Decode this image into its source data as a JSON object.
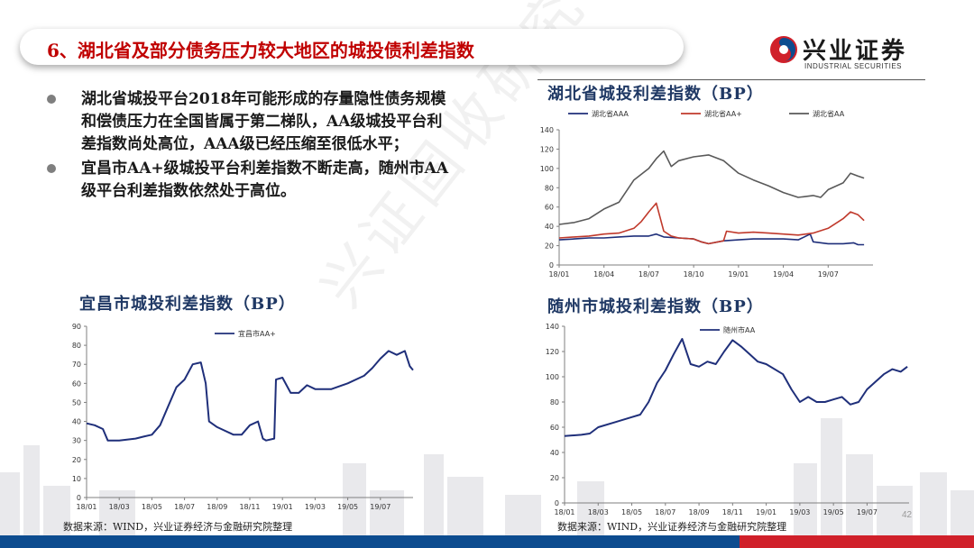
{
  "header": {
    "title": "6、湖北省及部分债务压力较大地区的城投债利差指数",
    "logo_cn": "兴业证券",
    "logo_en": "INDUSTRIAL SECURITIES"
  },
  "watermark": "兴证固收研究",
  "bullets": [
    "湖北省城投平台2018年可能形成的存量隐性债务规模和偿债压力在全国皆属于第二梯队，AA级城投平台利差指数尚处高位，AAA级已经压缩至很低水平；",
    "宜昌市AA+级城投平台利差指数不断走高，随州市AA级平台利差指数依然处于高位。"
  ],
  "sources": {
    "left": "数据来源：WIND，兴业证券经济与金融研究院整理",
    "right": "数据来源：WIND，兴业证券经济与金融研究院整理"
  },
  "page_number": "42",
  "colors": {
    "title_red": "#c00000",
    "chart_title_blue": "#1f3864",
    "navy_series": "#1f2f7a",
    "red_series": "#c0392b",
    "gray_series": "#595959",
    "footer_blue": "#0d4c8f",
    "footer_red": "#d0202a"
  },
  "chart_data": [
    {
      "id": "hubei",
      "type": "line",
      "title": "湖北省城投利差指数（BP）",
      "ylim": [
        0,
        140
      ],
      "yticks": [
        0,
        20,
        40,
        60,
        80,
        100,
        120,
        140
      ],
      "xlim": [
        0,
        21
      ],
      "xticks": [
        {
          "x": 0,
          "label": "18/01"
        },
        {
          "x": 3,
          "label": "18/04"
        },
        {
          "x": 6,
          "label": "18/07"
        },
        {
          "x": 9,
          "label": "18/10"
        },
        {
          "x": 12,
          "label": "19/01"
        },
        {
          "x": 15,
          "label": "19/04"
        },
        {
          "x": 18,
          "label": "19/07"
        }
      ],
      "legend": "top",
      "series": [
        {
          "name": "湖北省AAA",
          "color": "#1f2f7a",
          "points": [
            [
              0,
              26
            ],
            [
              1,
              27
            ],
            [
              2,
              28
            ],
            [
              3,
              28
            ],
            [
              4,
              29
            ],
            [
              5,
              30
            ],
            [
              6,
              30
            ],
            [
              6.5,
              32
            ],
            [
              7,
              29
            ],
            [
              8,
              28
            ],
            [
              9,
              27
            ],
            [
              9.5,
              24
            ],
            [
              10,
              22
            ],
            [
              11,
              25
            ],
            [
              12,
              26
            ],
            [
              13,
              27
            ],
            [
              14,
              27
            ],
            [
              15,
              27
            ],
            [
              16,
              26
            ],
            [
              16.8,
              32
            ],
            [
              17,
              24
            ],
            [
              18,
              22
            ],
            [
              19,
              22
            ],
            [
              19.7,
              23
            ],
            [
              20,
              21
            ],
            [
              20.4,
              21
            ]
          ]
        },
        {
          "name": "湖北省AA+",
          "color": "#c0392b",
          "points": [
            [
              0,
              28
            ],
            [
              1,
              29
            ],
            [
              2,
              30
            ],
            [
              3,
              32
            ],
            [
              4,
              33
            ],
            [
              5,
              38
            ],
            [
              5.5,
              45
            ],
            [
              6,
              55
            ],
            [
              6.5,
              64
            ],
            [
              7,
              35
            ],
            [
              7.5,
              30
            ],
            [
              8,
              28
            ],
            [
              9,
              27
            ],
            [
              9.5,
              24
            ],
            [
              10,
              22
            ],
            [
              11,
              25
            ],
            [
              11.2,
              35
            ],
            [
              12,
              33
            ],
            [
              13,
              34
            ],
            [
              14,
              33
            ],
            [
              15,
              32
            ],
            [
              16,
              31
            ],
            [
              17,
              33
            ],
            [
              18,
              38
            ],
            [
              19,
              48
            ],
            [
              19.5,
              55
            ],
            [
              20,
              52
            ],
            [
              20.4,
              46
            ]
          ]
        },
        {
          "name": "湖北省AA",
          "color": "#595959",
          "points": [
            [
              0,
              42
            ],
            [
              1,
              44
            ],
            [
              2,
              48
            ],
            [
              3,
              58
            ],
            [
              4,
              65
            ],
            [
              5,
              88
            ],
            [
              6,
              100
            ],
            [
              6.5,
              110
            ],
            [
              7,
              118
            ],
            [
              7.5,
              102
            ],
            [
              8,
              108
            ],
            [
              9,
              112
            ],
            [
              10,
              114
            ],
            [
              11,
              108
            ],
            [
              12,
              95
            ],
            [
              13,
              88
            ],
            [
              14,
              82
            ],
            [
              15,
              75
            ],
            [
              16,
              70
            ],
            [
              17,
              72
            ],
            [
              17.5,
              70
            ],
            [
              18,
              78
            ],
            [
              19,
              85
            ],
            [
              19.5,
              95
            ],
            [
              20,
              92
            ],
            [
              20.4,
              90
            ]
          ]
        }
      ]
    },
    {
      "id": "yichang",
      "type": "line",
      "title": "宜昌市城投利差指数（BP）",
      "ylim": [
        0,
        90
      ],
      "yticks": [
        0,
        10,
        20,
        30,
        40,
        50,
        60,
        70,
        80,
        90
      ],
      "xlim": [
        0,
        20
      ],
      "xticks": [
        {
          "x": 0,
          "label": "18/01"
        },
        {
          "x": 2,
          "label": "18/03"
        },
        {
          "x": 4,
          "label": "18/05"
        },
        {
          "x": 6,
          "label": "18/07"
        },
        {
          "x": 8,
          "label": "18/09"
        },
        {
          "x": 10,
          "label": "18/11"
        },
        {
          "x": 12,
          "label": "19/01"
        },
        {
          "x": 14,
          "label": "19/03"
        },
        {
          "x": 16,
          "label": "19/05"
        },
        {
          "x": 18,
          "label": "19/07"
        }
      ],
      "legend": "top-right",
      "series": [
        {
          "name": "宜昌市AA+",
          "color": "#1f2f7a",
          "points": [
            [
              0,
              39
            ],
            [
              0.5,
              38
            ],
            [
              1,
              36
            ],
            [
              1.3,
              30
            ],
            [
              2,
              30
            ],
            [
              3,
              31
            ],
            [
              3.5,
              32
            ],
            [
              4,
              33
            ],
            [
              4.5,
              38
            ],
            [
              5,
              48
            ],
            [
              5.5,
              58
            ],
            [
              6,
              62
            ],
            [
              6.5,
              70
            ],
            [
              7,
              71
            ],
            [
              7.3,
              60
            ],
            [
              7.5,
              40
            ],
            [
              8,
              37
            ],
            [
              9,
              33
            ],
            [
              9.5,
              33
            ],
            [
              10,
              38
            ],
            [
              10.5,
              40
            ],
            [
              10.8,
              31
            ],
            [
              11,
              30
            ],
            [
              11.5,
              31
            ],
            [
              11.6,
              62
            ],
            [
              12,
              63
            ],
            [
              12.5,
              55
            ],
            [
              13,
              55
            ],
            [
              13.5,
              59
            ],
            [
              14,
              57
            ],
            [
              15,
              57
            ],
            [
              16,
              60
            ],
            [
              17,
              64
            ],
            [
              17.5,
              68
            ],
            [
              18,
              73
            ],
            [
              18.5,
              77
            ],
            [
              19,
              75
            ],
            [
              19.5,
              77
            ],
            [
              19.8,
              69
            ],
            [
              20,
              67
            ]
          ]
        }
      ]
    },
    {
      "id": "suizhou",
      "type": "line",
      "title": "随州市城投利差指数（BP）",
      "ylim": [
        0,
        140
      ],
      "yticks": [
        0,
        20,
        40,
        60,
        80,
        100,
        120,
        140
      ],
      "xlim": [
        0,
        20.5
      ],
      "xticks": [
        {
          "x": 0,
          "label": "18/01"
        },
        {
          "x": 2,
          "label": "18/03"
        },
        {
          "x": 4,
          "label": "18/05"
        },
        {
          "x": 6,
          "label": "18/07"
        },
        {
          "x": 8,
          "label": "18/09"
        },
        {
          "x": 10,
          "label": "18/11"
        },
        {
          "x": 12,
          "label": "19/01"
        },
        {
          "x": 14,
          "label": "19/03"
        },
        {
          "x": 16,
          "label": "19/05"
        },
        {
          "x": 18,
          "label": "19/07"
        }
      ],
      "legend": "top",
      "series": [
        {
          "name": "随州市AA",
          "color": "#1f2f7a",
          "points": [
            [
              0,
              53
            ],
            [
              1,
              54
            ],
            [
              1.5,
              55
            ],
            [
              2,
              60
            ],
            [
              3,
              64
            ],
            [
              4,
              68
            ],
            [
              4.5,
              70
            ],
            [
              5,
              80
            ],
            [
              5.5,
              95
            ],
            [
              6,
              105
            ],
            [
              6.5,
              118
            ],
            [
              7,
              130
            ],
            [
              7.3,
              118
            ],
            [
              7.5,
              110
            ],
            [
              8,
              108
            ],
            [
              8.5,
              112
            ],
            [
              9,
              110
            ],
            [
              9.5,
              120
            ],
            [
              10,
              129
            ],
            [
              10.5,
              124
            ],
            [
              11,
              118
            ],
            [
              11.5,
              112
            ],
            [
              12,
              110
            ],
            [
              13,
              102
            ],
            [
              13.5,
              90
            ],
            [
              14,
              80
            ],
            [
              14.5,
              84
            ],
            [
              15,
              80
            ],
            [
              15.5,
              80
            ],
            [
              16,
              82
            ],
            [
              16.5,
              84
            ],
            [
              17,
              78
            ],
            [
              17.5,
              80
            ],
            [
              18,
              90
            ],
            [
              18.5,
              96
            ],
            [
              19,
              102
            ],
            [
              19.5,
              106
            ],
            [
              20,
              104
            ],
            [
              20.4,
              108
            ]
          ]
        }
      ]
    }
  ]
}
